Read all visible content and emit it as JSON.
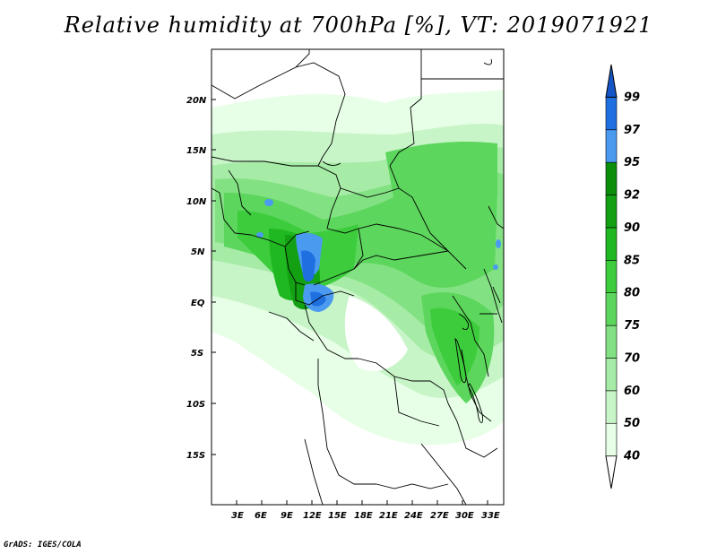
{
  "title": "Relative humidity at 700hPa [%], VT: 2019071921",
  "credit": "GrADS: IGES/COLA",
  "map": {
    "lat_labels": [
      "20N",
      "15N",
      "10N",
      "5N",
      "EQ",
      "5S",
      "10S",
      "15S"
    ],
    "lon_labels": [
      "3E",
      "6E",
      "9E",
      "12E",
      "15E",
      "18E",
      "21E",
      "24E",
      "27E",
      "30E",
      "33E"
    ]
  },
  "colorbar": {
    "levels": [
      "40",
      "50",
      "60",
      "70",
      "75",
      "80",
      "85",
      "90",
      "92",
      "95",
      "97",
      "99"
    ],
    "colors": [
      "#ffffff",
      "#e6ffe6",
      "#c8f5c8",
      "#a6eba6",
      "#82e182",
      "#5cd65c",
      "#3ccc3c",
      "#20b820",
      "#13a113",
      "#0b8f0b",
      "#4a9bf0",
      "#1f6fe0",
      "#1456c8"
    ]
  }
}
